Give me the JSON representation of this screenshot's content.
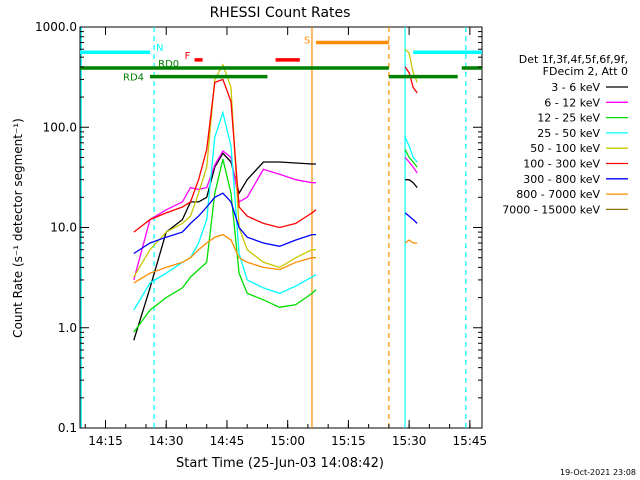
{
  "chart_data": {
    "type": "line",
    "title": "RHESSI Count Rates",
    "xlabel": "Start Time (25-Jun-03 14:08:42)",
    "ylabel": "Count Rate (s⁻¹ detector segment⁻¹)",
    "y_scale": "log",
    "ylim": [
      0.1,
      1000
    ],
    "xlim": [
      "14:08:42",
      "15:48:00"
    ],
    "x_ticks": [
      "14:15",
      "14:30",
      "14:45",
      "15:00",
      "15:15",
      "15:30",
      "15:45"
    ],
    "y_ticks": [
      "0.1",
      "1.0",
      "10.0",
      "100.0",
      "1000.0"
    ],
    "timestamp": "19-Oct-2021 23:08",
    "legend": {
      "placement": "right",
      "header_lines": [
        "Det 1f,3f,4f,5f,6f,9f,",
        "FDecim 2, Att 0"
      ],
      "entries": [
        {
          "label": "3 - 6 keV",
          "color": "#000000"
        },
        {
          "label": "6 - 12 keV",
          "color": "#ff00ff"
        },
        {
          "label": "12 - 25 keV",
          "color": "#00dd00"
        },
        {
          "label": "25 - 50 keV",
          "color": "#00ffff"
        },
        {
          "label": "50 - 100 keV",
          "color": "#c8c800"
        },
        {
          "label": "100 - 300 keV",
          "color": "#ff0000"
        },
        {
          "label": "300 - 800 keV",
          "color": "#0000ff"
        },
        {
          "label": "800 - 7000 keV",
          "color": "#ff8c00"
        },
        {
          "label": "7000 - 15000 keV",
          "color": "#8b7300"
        }
      ]
    },
    "flag_bars": [
      {
        "label": "N",
        "color": "#00ffff",
        "y": 560,
        "segments": [
          [
            "14:08:42",
            "14:26"
          ],
          [
            "15:31",
            "15:48"
          ]
        ]
      },
      {
        "label": "F",
        "color": "#ff0000",
        "y": 470,
        "segments": [
          [
            "14:37",
            "14:39"
          ],
          [
            "14:57",
            "15:03"
          ]
        ]
      },
      {
        "label": "S",
        "color": "#ff8c00",
        "y": 700,
        "segments": [
          [
            "15:07",
            "15:25"
          ]
        ]
      },
      {
        "label": "RD0",
        "color": "#008000",
        "y": 390,
        "segments": [
          [
            "14:08:42",
            "15:25"
          ],
          [
            "15:43",
            "15:48"
          ]
        ]
      },
      {
        "label": "RD4",
        "color": "#008000",
        "y": 320,
        "segments": [
          [
            "14:26",
            "14:55"
          ],
          [
            "15:25",
            "15:42"
          ]
        ]
      }
    ],
    "vlines": [
      {
        "x": "14:09",
        "color": "#00ffff",
        "style": "solid"
      },
      {
        "x": "14:27",
        "color": "#00ffff",
        "style": "dashed"
      },
      {
        "x": "15:06",
        "color": "#ff8c00",
        "style": "solid"
      },
      {
        "x": "15:25",
        "color": "#ff8c00",
        "style": "dashed"
      },
      {
        "x": "15:29",
        "color": "#00ffff",
        "style": "solid"
      },
      {
        "x": "15:44",
        "color": "#00ffff",
        "style": "dashed"
      }
    ],
    "x_times": [
      "14:22",
      "14:26",
      "14:30",
      "14:34",
      "14:36",
      "14:38",
      "14:40",
      "14:42",
      "14:44",
      "14:46",
      "14:48",
      "14:50",
      "14:54",
      "14:58",
      "15:02",
      "15:06",
      "15:07"
    ],
    "x_times_late": [
      "15:29",
      "15:30",
      "15:31",
      "15:32"
    ],
    "series": [
      {
        "name": "3 - 6 keV",
        "color": "#000000",
        "values": [
          0.75,
          2.5,
          9,
          12,
          18,
          18,
          20,
          40,
          55,
          45,
          22,
          30,
          45,
          45,
          44,
          43,
          43
        ],
        "values_late": [
          30,
          30,
          28,
          25
        ]
      },
      {
        "name": "6 - 12 keV",
        "color": "#ff00ff",
        "values": [
          3,
          12,
          15,
          18,
          25,
          24,
          25,
          42,
          58,
          50,
          18,
          20,
          38,
          34,
          30,
          28,
          28
        ],
        "values_late": [
          50,
          45,
          40,
          35
        ]
      },
      {
        "name": "12 - 25 keV",
        "color": "#00dd00",
        "values": [
          0.9,
          1.5,
          2,
          2.5,
          3.2,
          3.8,
          4.5,
          22,
          48,
          22,
          3.5,
          2.2,
          1.9,
          1.6,
          1.7,
          2.2,
          2.4
        ],
        "values_late": [
          60,
          50,
          45,
          40
        ]
      },
      {
        "name": "25 - 50 keV",
        "color": "#00ffff",
        "values": [
          1.5,
          2.8,
          3.5,
          4.5,
          5,
          7,
          12,
          80,
          140,
          65,
          5.5,
          3,
          2.5,
          2.2,
          2.6,
          3.2,
          3.4
        ],
        "values_late": [
          80,
          65,
          50,
          45
        ]
      },
      {
        "name": "50 - 100 keV",
        "color": "#c8c800",
        "values": [
          3.2,
          6,
          9,
          11,
          13,
          22,
          40,
          300,
          420,
          250,
          10,
          6,
          4.5,
          4,
          5,
          6,
          6
        ],
        "values_late": [
          600,
          550,
          350,
          280
        ]
      },
      {
        "name": "100 - 300 keV",
        "color": "#ff0000",
        "values": [
          9,
          12,
          14,
          16,
          18,
          30,
          60,
          280,
          300,
          180,
          16,
          13,
          11,
          10,
          11,
          14,
          15
        ],
        "values_late": [
          400,
          350,
          250,
          220
        ]
      },
      {
        "name": "300 - 800 keV",
        "color": "#0000ff",
        "values": [
          5.5,
          7,
          8,
          9,
          11,
          13,
          16,
          20,
          22,
          18,
          10,
          8,
          7,
          6.5,
          7.5,
          8.5,
          8.5
        ],
        "values_late": [
          14,
          13,
          12,
          11
        ]
      },
      {
        "name": "800 - 7000 keV",
        "color": "#ff8c00",
        "values": [
          2.8,
          3.5,
          4,
          4.5,
          5,
          6,
          7,
          8,
          8.5,
          7.5,
          5,
          4.5,
          4,
          3.8,
          4.5,
          5,
          5
        ],
        "values_late": [
          7,
          7.5,
          7,
          7
        ]
      },
      {
        "name": "7000 - 15000 keV",
        "color": "#8b7300",
        "values": [],
        "values_late": []
      }
    ]
  }
}
